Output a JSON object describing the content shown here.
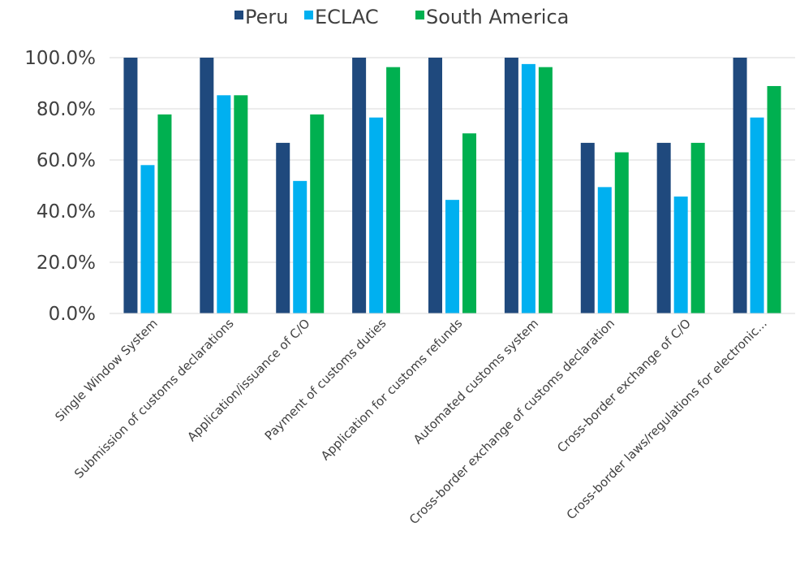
{
  "chart_data": {
    "type": "bar",
    "categories": [
      "Single Window System",
      "Submission of customs declarations",
      "Application/issuance of C/O",
      "Payment of customs duties",
      "Application for customs refunds",
      "Automated customs system",
      "Cross-border exchange of customs declaration",
      "Cross-border exchange of C/O",
      "Cross-border laws/regulations for electronic..."
    ],
    "series": [
      {
        "name": "Peru",
        "color": "#1f497d",
        "values": [
          100.0,
          100.0,
          66.7,
          100.0,
          100.0,
          100.0,
          66.7,
          66.7,
          100.0
        ]
      },
      {
        "name": "ECLAC",
        "color": "#00b0f0",
        "values": [
          58.0,
          85.3,
          51.8,
          76.6,
          44.4,
          97.5,
          49.4,
          45.7,
          76.6
        ]
      },
      {
        "name": "South America",
        "color": "#00b050",
        "values": [
          77.8,
          85.3,
          77.8,
          96.3,
          70.4,
          96.3,
          63.0,
          66.7,
          88.9
        ]
      }
    ],
    "yticks": [
      "0.0%",
      "20.0%",
      "40.0%",
      "60.0%",
      "80.0%",
      "100.0%"
    ],
    "ylim": [
      0,
      100
    ],
    "grid": true,
    "legend_position": "top"
  }
}
